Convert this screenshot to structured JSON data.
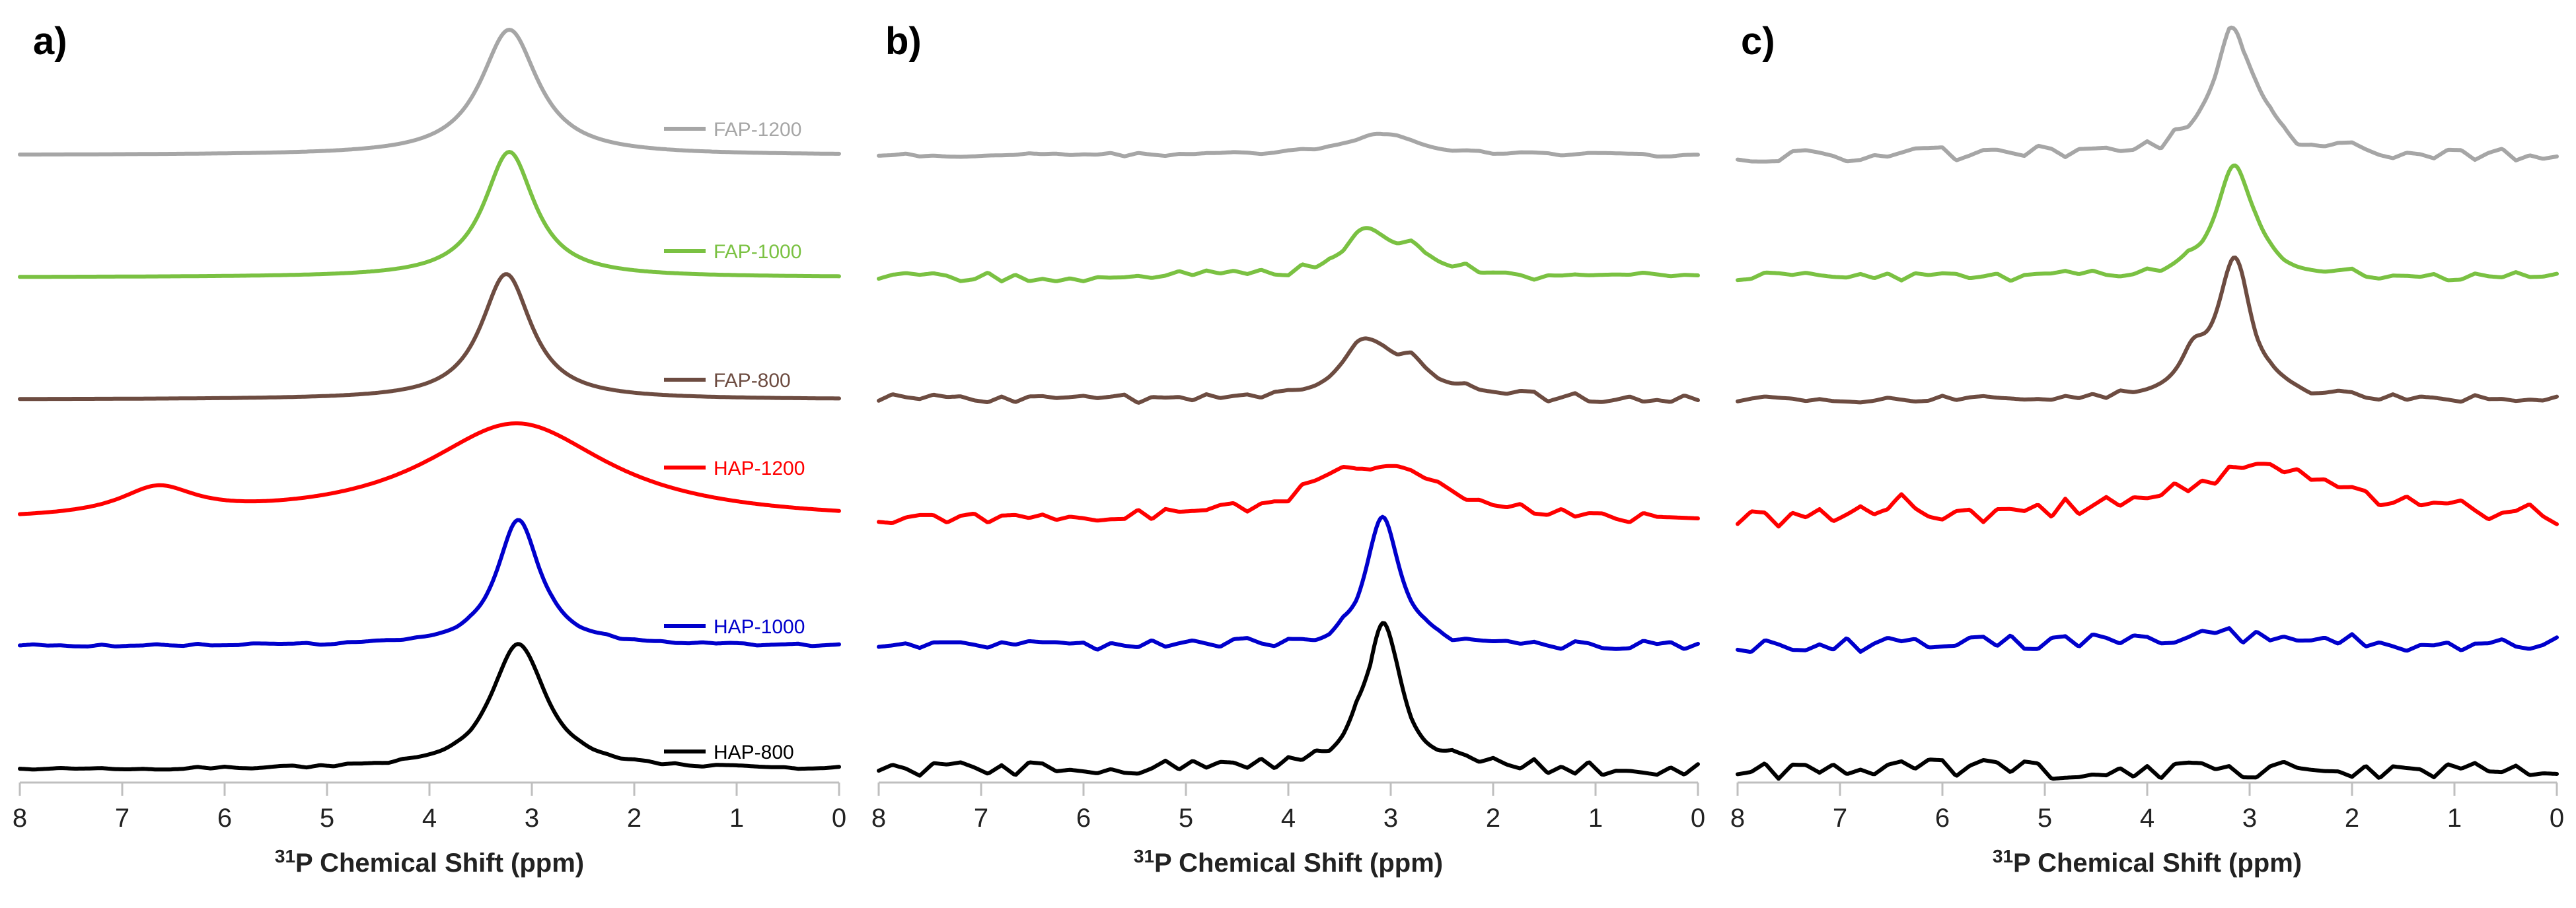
{
  "chart_data": [
    {
      "panel": "a)",
      "type": "line",
      "xlabel_sup": "31",
      "xlabel_text": "P Chemical Shift (ppm)",
      "xlim": [
        8,
        0
      ],
      "x_ticks": [
        "8",
        "7",
        "6",
        "5",
        "4",
        "3",
        "2",
        "1",
        "0"
      ],
      "series": [
        {
          "name": "FAP-1200",
          "color": "#a6a6a6",
          "peaks": [
            {
              "center": 3.22,
              "amp": 1.0,
              "w": 0.34
            }
          ],
          "noise": 0.0
        },
        {
          "name": "FAP-1000",
          "color": "#7ac142",
          "peaks": [
            {
              "center": 3.22,
              "amp": 1.0,
              "w": 0.3
            }
          ],
          "noise": 0.0
        },
        {
          "name": "FAP-800",
          "color": "#6d4c41",
          "peaks": [
            {
              "center": 3.25,
              "amp": 1.0,
              "w": 0.3
            }
          ],
          "noise": 0.0
        },
        {
          "name": "HAP-1200",
          "color": "#ff0000",
          "peaks": [
            {
              "center": 3.15,
              "amp": 0.78,
              "w": 1.1
            },
            {
              "center": 6.65,
              "amp": 0.22,
              "w": 0.45
            }
          ],
          "noise": 0.0
        },
        {
          "name": "HAP-1000",
          "color": "#0000cc",
          "peaks": [
            {
              "center": 3.13,
              "amp": 1.0,
              "w": 0.26
            }
          ],
          "noise": 0.01
        },
        {
          "name": "HAP-800",
          "color": "#000000",
          "peaks": [
            {
              "center": 3.13,
              "amp": 1.0,
              "w": 0.32
            }
          ],
          "noise": 0.01
        }
      ]
    },
    {
      "panel": "b)",
      "type": "line",
      "xlabel_sup": "31",
      "xlabel_text": "P Chemical Shift (ppm)",
      "xlim": [
        8,
        0
      ],
      "x_ticks": [
        "8",
        "7",
        "6",
        "5",
        "4",
        "3",
        "2",
        "1",
        "0"
      ],
      "series": [
        {
          "name": "FAP-1200",
          "color": "#a6a6a6",
          "peaks": [
            {
              "center": 3.1,
              "amp": 0.18,
              "w": 0.38
            }
          ],
          "noise": 0.015
        },
        {
          "name": "FAP-1000",
          "color": "#7ac142",
          "peaks": [
            {
              "center": 3.25,
              "amp": 0.35,
              "w": 0.28
            },
            {
              "center": 2.75,
              "amp": 0.18,
              "w": 0.3
            }
          ],
          "noise": 0.04
        },
        {
          "name": "FAP-800",
          "color": "#6d4c41",
          "peaks": [
            {
              "center": 3.25,
              "amp": 0.4,
              "w": 0.3
            },
            {
              "center": 2.8,
              "amp": 0.22,
              "w": 0.32
            }
          ],
          "noise": 0.04
        },
        {
          "name": "HAP-1200",
          "color": "#ff0000",
          "peaks": [
            {
              "center": 3.15,
              "amp": 0.45,
              "w": 0.8
            }
          ],
          "noise": 0.05
        },
        {
          "name": "HAP-1000",
          "color": "#0000cc",
          "peaks": [
            {
              "center": 3.08,
              "amp": 1.0,
              "w": 0.2
            }
          ],
          "noise": 0.04
        },
        {
          "name": "HAP-800",
          "color": "#000000",
          "peaks": [
            {
              "center": 3.08,
              "amp": 1.15,
              "w": 0.22
            }
          ],
          "noise": 0.06
        }
      ]
    },
    {
      "panel": "c)",
      "type": "line",
      "xlabel_sup": "31",
      "xlabel_text": "P Chemical Shift (ppm)",
      "xlim": [
        8,
        0
      ],
      "x_ticks": [
        "8",
        "7",
        "6",
        "5",
        "4",
        "3",
        "2",
        "1",
        "0"
      ],
      "series": [
        {
          "name": "FAP-1200",
          "color": "#a6a6a6",
          "peaks": [
            {
              "center": 3.15,
              "amp": 1.0,
              "w": 0.25
            }
          ],
          "noise": 0.06
        },
        {
          "name": "FAP-1000",
          "color": "#7ac142",
          "peaks": [
            {
              "center": 3.15,
              "amp": 0.9,
              "w": 0.22
            }
          ],
          "noise": 0.04
        },
        {
          "name": "FAP-800",
          "color": "#6d4c41",
          "peaks": [
            {
              "center": 3.15,
              "amp": 1.1,
              "w": 0.2
            },
            {
              "center": 3.55,
              "amp": 0.25,
              "w": 0.15
            }
          ],
          "noise": 0.03
        },
        {
          "name": "HAP-1200",
          "color": "#ff0000",
          "peaks": [
            {
              "center": 2.9,
              "amp": 0.42,
              "w": 1.1
            },
            {
              "center": 6.5,
              "amp": 0.12,
              "w": 0.35
            }
          ],
          "noise": 0.08
        },
        {
          "name": "HAP-1000",
          "color": "#0000cc",
          "peaks": [
            {
              "center": 3.4,
              "amp": 0.08,
              "w": 1.2
            }
          ],
          "noise": 0.07
        },
        {
          "name": "HAP-800",
          "color": "#000000",
          "peaks": [],
          "noise": 0.08
        }
      ]
    }
  ]
}
